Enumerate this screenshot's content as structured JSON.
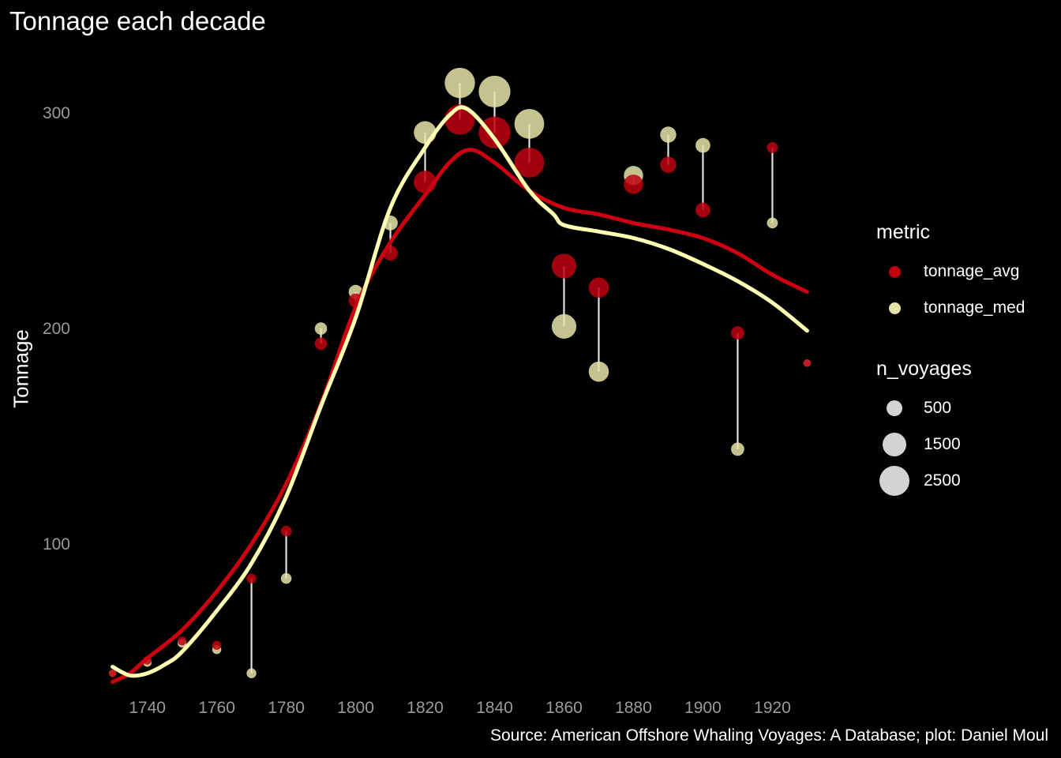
{
  "chart_data": {
    "type": "scatter",
    "title": "Tonnage each decade",
    "xlabel": "",
    "ylabel": "Tonnage",
    "caption": "Source: American Offshore Whaling Voyages: A Database; plot: Daniel Moul",
    "xlim": [
      1726,
      1934
    ],
    "ylim": [
      30,
      325
    ],
    "xticks": [
      "1740",
      "1760",
      "1780",
      "1800",
      "1820",
      "1840",
      "1860",
      "1880",
      "1900",
      "1920"
    ],
    "yticks": [
      "100",
      "200",
      "300"
    ],
    "colors": {
      "tonnage_avg": "#c0000f",
      "tonnage_med": "#e6e4a8",
      "segment": "#e0e0e0",
      "smooth_avg": "#cc0011",
      "smooth_med": "#ffffb3"
    },
    "legend_position": "right",
    "legend_metric": {
      "title": "metric",
      "items": [
        "tonnage_avg",
        "tonnage_med"
      ]
    },
    "legend_size": {
      "title": "n_voyages",
      "items": [
        "500",
        "1500",
        "2500"
      ],
      "values": [
        500,
        1500,
        2500
      ]
    },
    "points": [
      {
        "decade": 1730,
        "avg": 40,
        "med": 40,
        "n_voyages": 5
      },
      {
        "decade": 1740,
        "avg": 46,
        "med": 45,
        "n_voyages": 20
      },
      {
        "decade": 1750,
        "avg": 55,
        "med": 54,
        "n_voyages": 25
      },
      {
        "decade": 1760,
        "avg": 53,
        "med": 51,
        "n_voyages": 30
      },
      {
        "decade": 1770,
        "avg": 84,
        "med": 40,
        "n_voyages": 50
      },
      {
        "decade": 1780,
        "avg": 106,
        "med": 84,
        "n_voyages": 80
      },
      {
        "decade": 1790,
        "avg": 193,
        "med": 200,
        "n_voyages": 150
      },
      {
        "decade": 1800,
        "avg": 213,
        "med": 217,
        "n_voyages": 250
      },
      {
        "decade": 1810,
        "avg": 235,
        "med": 249,
        "n_voyages": 300
      },
      {
        "decade": 1820,
        "avg": 268,
        "med": 291,
        "n_voyages": 1100
      },
      {
        "decade": 1830,
        "avg": 297,
        "med": 314,
        "n_voyages": 2400
      },
      {
        "decade": 1840,
        "avg": 291,
        "med": 310,
        "n_voyages": 2700
      },
      {
        "decade": 1850,
        "avg": 277,
        "med": 295,
        "n_voyages": 2300
      },
      {
        "decade": 1860,
        "avg": 229,
        "med": 201,
        "n_voyages": 1400
      },
      {
        "decade": 1870,
        "avg": 219,
        "med": 180,
        "n_voyages": 800
      },
      {
        "decade": 1880,
        "avg": 267,
        "med": 271,
        "n_voyages": 700
      },
      {
        "decade": 1890,
        "avg": 276,
        "med": 290,
        "n_voyages": 400
      },
      {
        "decade": 1900,
        "avg": 255,
        "med": 285,
        "n_voyages": 300
      },
      {
        "decade": 1910,
        "avg": 198,
        "med": 144,
        "n_voyages": 200
      },
      {
        "decade": 1920,
        "avg": 284,
        "med": 249,
        "n_voyages": 90
      },
      {
        "decade": 1930,
        "avg": 184,
        "med": 184,
        "n_voyages": 5
      }
    ],
    "smooth_avg": {
      "x": [
        1730,
        1735,
        1740,
        1750,
        1760,
        1770,
        1780,
        1790,
        1800,
        1810,
        1820,
        1827,
        1833,
        1840,
        1850,
        1860,
        1870,
        1880,
        1890,
        1900,
        1910,
        1920,
        1930
      ],
      "y": [
        36,
        40,
        47,
        60,
        78,
        100,
        128,
        165,
        210,
        240,
        262,
        277,
        283,
        277,
        264,
        256,
        253,
        249,
        246,
        242,
        235,
        225,
        217
      ]
    },
    "smooth_med": {
      "x": [
        1730,
        1735,
        1740,
        1745,
        1750,
        1760,
        1770,
        1780,
        1790,
        1800,
        1810,
        1820,
        1827,
        1832,
        1840,
        1850,
        1857,
        1860,
        1870,
        1880,
        1890,
        1900,
        1910,
        1920,
        1930
      ],
      "y": [
        43,
        39,
        40,
        44,
        50,
        69,
        91,
        122,
        164,
        205,
        256,
        284,
        299,
        302,
        288,
        264,
        253,
        248,
        245,
        242,
        237,
        230,
        222,
        212,
        199
      ]
    }
  }
}
